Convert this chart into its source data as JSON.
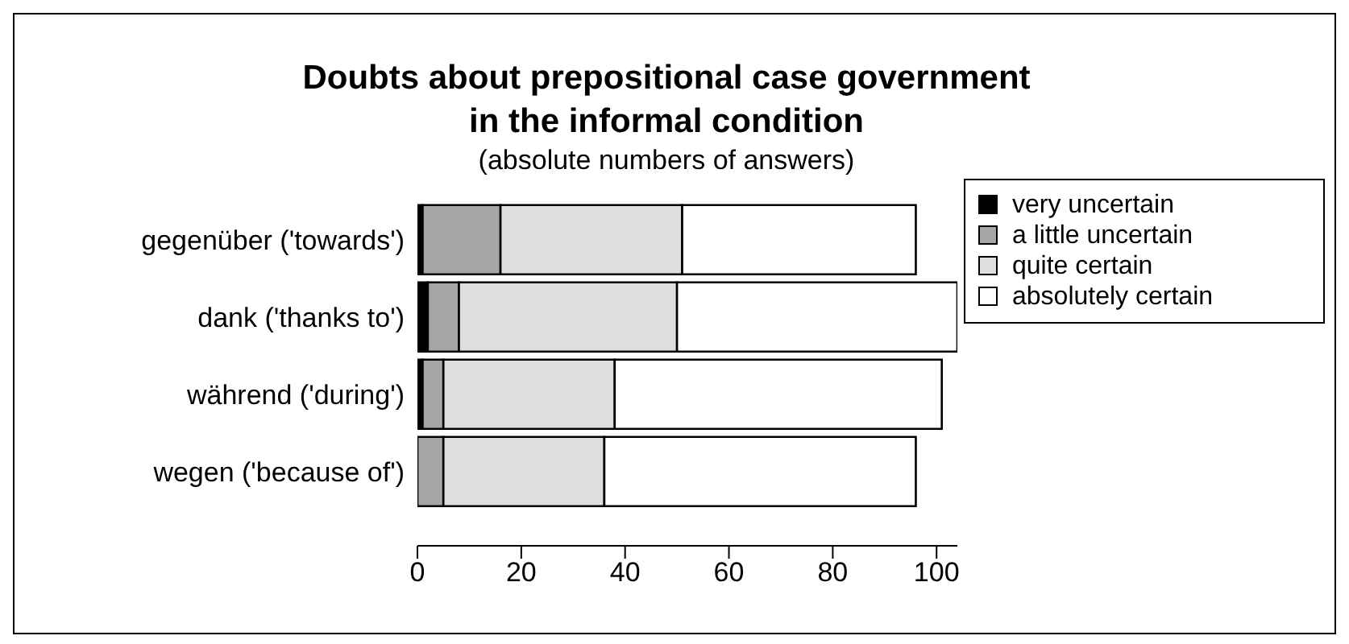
{
  "chart_data": {
    "type": "bar",
    "orientation": "horizontal",
    "stacked": true,
    "title": "Doubts about prepositional case government\nin the informal condition",
    "subtitle": "(absolute numbers of answers)",
    "categories": [
      "gegenüber ('towards')",
      "dank ('thanks to')",
      "während ('during')",
      "wegen ('because of')"
    ],
    "series": [
      {
        "name": "very uncertain",
        "color": "#000000",
        "values": [
          1,
          2,
          1,
          0
        ]
      },
      {
        "name": "a little uncertain",
        "color": "#a6a6a6",
        "values": [
          15,
          6,
          4,
          5
        ]
      },
      {
        "name": "quite certain",
        "color": "#dedede",
        "values": [
          35,
          42,
          33,
          31
        ]
      },
      {
        "name": "absolutely certain",
        "color": "#ffffff",
        "values": [
          45,
          54,
          63,
          60
        ]
      }
    ],
    "xlim": [
      0,
      104
    ],
    "xticks": [
      0,
      20,
      40,
      60,
      80,
      100
    ],
    "grid": false,
    "legend": "top right"
  }
}
